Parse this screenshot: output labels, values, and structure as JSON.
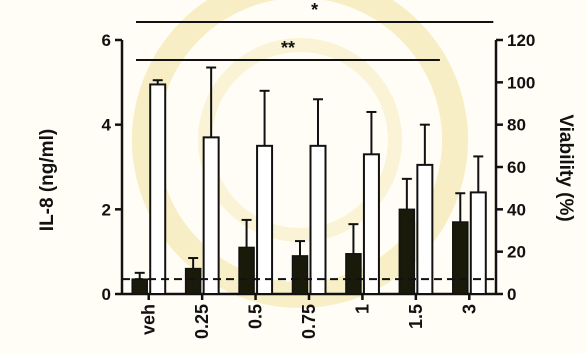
{
  "chart_data": {
    "type": "bar",
    "categories": [
      "veh",
      "0.25",
      "0.5",
      "0.75",
      "1",
      "1.5",
      "3"
    ],
    "series": [
      {
        "axis": "left",
        "fill": "#1a1a0a",
        "values": [
          0.35,
          0.6,
          1.1,
          0.9,
          0.95,
          2.0,
          1.7
        ],
        "errors": [
          0.15,
          0.25,
          0.65,
          0.35,
          0.7,
          0.72,
          0.68
        ]
      },
      {
        "axis": "right",
        "fill": "#ffffff",
        "values": [
          99,
          74,
          70,
          70,
          66,
          61,
          48
        ],
        "errors": [
          2,
          33,
          26,
          22,
          20,
          19,
          17
        ]
      }
    ],
    "ylabel": "IL-8 (ng/ml)",
    "ylabel_right": "Viability (%)",
    "ylim": [
      0,
      6
    ],
    "ylim_right": [
      0,
      120
    ],
    "yticks": [
      "0",
      "2",
      "4",
      "6"
    ],
    "yticks_right": [
      "0",
      "20",
      "40",
      "60",
      "80",
      "100",
      "120"
    ],
    "baseline": 0.35,
    "significance": [
      {
        "label": "*",
        "from": "veh",
        "to": "3"
      },
      {
        "label": "**",
        "from": "veh",
        "to": "1.5"
      }
    ],
    "colors": {
      "axis": "#111111",
      "background": "#fffdf6",
      "watermark": "#f6e7a8"
    }
  }
}
